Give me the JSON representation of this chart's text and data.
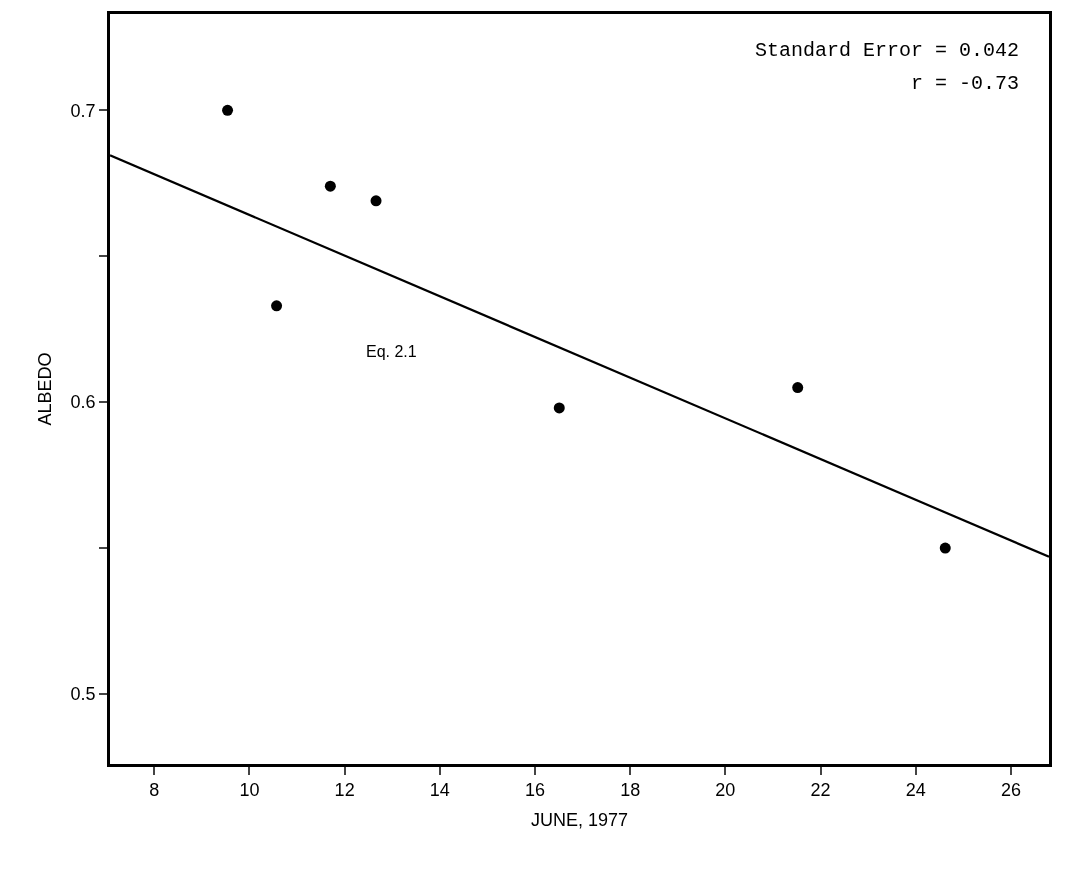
{
  "chart_data": {
    "type": "scatter",
    "xlabel": "JUNE, 1977",
    "ylabel": "ALBEDO",
    "series": [
      {
        "color": "#000000",
        "marker": "circle",
        "x": [
          9.54,
          10.57,
          11.7,
          12.66,
          16.51,
          21.52,
          24.62
        ],
        "values": [
          0.7,
          0.633,
          0.674,
          0.669,
          0.598,
          0.605,
          0.55
        ]
      },
      {
        "type": "line",
        "color": "#000000",
        "marker": "none",
        "line_style": "solid",
        "x": [
          7.07,
          26.8
        ],
        "values": [
          0.6846,
          0.547
        ]
      }
    ],
    "xlim": [
      7.07,
      26.8
    ],
    "ylim": [
      0.476,
      0.733
    ],
    "xticks": [
      8,
      10,
      12,
      14,
      16,
      18,
      20,
      22,
      24,
      26
    ],
    "yticks": [
      0.5,
      {
        "value": 0.55,
        "label": null
      },
      0.6,
      {
        "value": 0.65,
        "label": null
      },
      0.7
    ],
    "annotations": [
      "Standard Error = 0.042",
      "r = -0.73",
      "Eq. 2.1"
    ]
  }
}
